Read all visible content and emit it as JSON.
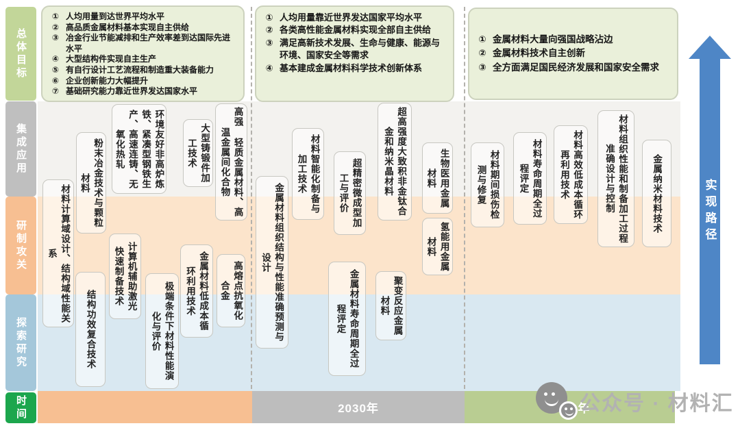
{
  "sidebar": {
    "rows": [
      {
        "id": "overall-goals",
        "label": "总体目标",
        "color": "#c2d699"
      },
      {
        "id": "integrated-application",
        "label": "集成应用",
        "color": "#bfbfbf"
      },
      {
        "id": "development-tackling",
        "label": "研制攻关",
        "color": "#f7bf92"
      },
      {
        "id": "exploratory-research",
        "label": "探索研究",
        "color": "#a4c7da"
      },
      {
        "id": "time",
        "label": "时间",
        "color": "#1ca64d"
      }
    ]
  },
  "numbers": [
    "①",
    "②",
    "③",
    "④",
    "⑤",
    "⑥",
    "⑦"
  ],
  "goal_boxes": [
    {
      "period": "near-term",
      "items": [
        "人均用量到达世界平均水平",
        "高品质金属材料基本实现自主供给",
        "冶金行业节能减排和生产效率差到达国际先进水平",
        "大型结构件实现自主生产",
        "有自行设计工艺流程和制造重大装备能力",
        "企业创新能力大幅提升",
        "基础研究能力靠近世界发达国家水平"
      ]
    },
    {
      "period": "2030",
      "items": [
        "人均用量靠近世界发达国家平均水平",
        "各类高性能金属材料实现全部自主供给",
        "满足高新技术发展、生命与健康、能源与环境、国家安全等需求",
        "基本建成金属材料科学技术创新体系"
      ]
    },
    {
      "period": "2050",
      "items": [
        "金属材料大量向强国战略沾边",
        "金属材料技术自主创新",
        "全方面满足国民经济发展和国家安全需求"
      ]
    }
  ],
  "pills": [
    "材料计算域设计、结构域性能关系",
    "粉末冶金技术与颗粒材料",
    "环境友好非高炉炼铁、紧凑型钢铁生产、高速连铸、无氧化热轧",
    "结构功效复合技术",
    "计算机辅助激光快速制备技术",
    "极端条件下材料性能演化与评价",
    "大型铸锻件加工技术",
    "高强 轻质金属材料、高温金属间化合物",
    "金属材料低成本循环利用技术",
    "高熔点抗氧化合金",
    "金属材料组织结构与性能准确预测与设计",
    "材料智能化制备与加工技术",
    "超精密微成型加工与评价",
    "超高强度大致积非金钛合金和纳米晶材料",
    "金属材料寿命周期全过程评定",
    "聚变反应金属材料",
    "生物医用金属材料",
    "氢能用金属材料",
    "材料期间损伤检测与修复",
    "材料寿命周期全过程评定",
    "材料高效低成本循环再利用技术",
    "材料组织性能和制备加工过程准确设计与控制",
    "金属纳米材料技术"
  ],
  "timeline": {
    "periods": [
      {
        "label": "",
        "color": "#f7bf92"
      },
      {
        "label": "2030年",
        "color": "#bdbdbd"
      },
      {
        "label": "2050年",
        "color": "#b9cd92"
      }
    ]
  },
  "arrow": {
    "label": "实现路径",
    "color": "#4e86c6"
  },
  "watermark": {
    "text": "公众号 · 材料汇"
  },
  "colors": {
    "band_integration": "#f3f2ef",
    "band_develop": "#fce4cb",
    "band_explore": "#d9e8f1",
    "goal_box_bg": "#eaf0da"
  }
}
